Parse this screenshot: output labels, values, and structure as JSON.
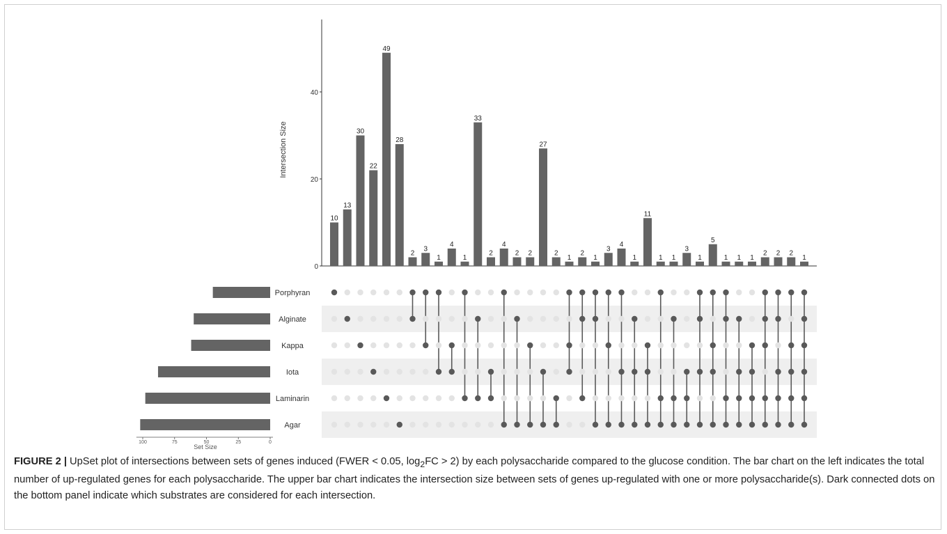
{
  "chart_data": {
    "type": "bar",
    "title": "",
    "ylabel": "Intersection Size",
    "ylim": [
      0,
      55
    ],
    "y_ticks": [
      0,
      20,
      40
    ],
    "set_size_axis": {
      "xlabel": "Set Size",
      "ticks": [
        "100",
        "75",
        "50",
        "25",
        "0"
      ],
      "xlim": [
        0,
        105
      ]
    },
    "sets": [
      "Porphyran",
      "Alginate",
      "Kappa",
      "Iota",
      "Laminarin",
      "Agar"
    ],
    "set_sizes": [
      45,
      60,
      62,
      88,
      98,
      102
    ],
    "intersections": [
      {
        "sets": [
          "Porphyran"
        ],
        "size": 10
      },
      {
        "sets": [
          "Alginate"
        ],
        "size": 13
      },
      {
        "sets": [
          "Kappa"
        ],
        "size": 30
      },
      {
        "sets": [
          "Iota"
        ],
        "size": 22
      },
      {
        "sets": [
          "Laminarin"
        ],
        "size": 49
      },
      {
        "sets": [
          "Agar"
        ],
        "size": 28
      },
      {
        "sets": [
          "Porphyran",
          "Alginate"
        ],
        "size": 2
      },
      {
        "sets": [
          "Porphyran",
          "Kappa"
        ],
        "size": 3
      },
      {
        "sets": [
          "Porphyran",
          "Iota"
        ],
        "size": 1
      },
      {
        "sets": [
          "Kappa",
          "Iota"
        ],
        "size": 4
      },
      {
        "sets": [
          "Porphyran",
          "Laminarin"
        ],
        "size": 1
      },
      {
        "sets": [
          "Alginate",
          "Laminarin"
        ],
        "size": 33
      },
      {
        "sets": [
          "Iota",
          "Laminarin"
        ],
        "size": 2
      },
      {
        "sets": [
          "Porphyran",
          "Agar"
        ],
        "size": 4
      },
      {
        "sets": [
          "Alginate",
          "Agar"
        ],
        "size": 2
      },
      {
        "sets": [
          "Kappa",
          "Agar"
        ],
        "size": 2
      },
      {
        "sets": [
          "Iota",
          "Agar"
        ],
        "size": 27
      },
      {
        "sets": [
          "Laminarin",
          "Agar"
        ],
        "size": 2
      },
      {
        "sets": [
          "Porphyran",
          "Kappa",
          "Iota"
        ],
        "size": 1
      },
      {
        "sets": [
          "Porphyran",
          "Alginate",
          "Laminarin"
        ],
        "size": 2
      },
      {
        "sets": [
          "Porphyran",
          "Alginate",
          "Agar"
        ],
        "size": 1
      },
      {
        "sets": [
          "Porphyran",
          "Kappa",
          "Agar"
        ],
        "size": 3
      },
      {
        "sets": [
          "Porphyran",
          "Iota",
          "Agar"
        ],
        "size": 4
      },
      {
        "sets": [
          "Alginate",
          "Iota",
          "Agar"
        ],
        "size": 1
      },
      {
        "sets": [
          "Kappa",
          "Iota",
          "Agar"
        ],
        "size": 11
      },
      {
        "sets": [
          "Porphyran",
          "Laminarin",
          "Agar"
        ],
        "size": 1
      },
      {
        "sets": [
          "Alginate",
          "Laminarin",
          "Agar"
        ],
        "size": 1
      },
      {
        "sets": [
          "Iota",
          "Laminarin",
          "Agar"
        ],
        "size": 3
      },
      {
        "sets": [
          "Porphyran",
          "Alginate",
          "Iota",
          "Agar"
        ],
        "size": 1
      },
      {
        "sets": [
          "Porphyran",
          "Kappa",
          "Iota",
          "Agar"
        ],
        "size": 5
      },
      {
        "sets": [
          "Porphyran",
          "Alginate",
          "Laminarin",
          "Agar"
        ],
        "size": 1
      },
      {
        "sets": [
          "Alginate",
          "Iota",
          "Laminarin",
          "Agar"
        ],
        "size": 1
      },
      {
        "sets": [
          "Kappa",
          "Iota",
          "Laminarin",
          "Agar"
        ],
        "size": 1
      },
      {
        "sets": [
          "Porphyran",
          "Alginate",
          "Kappa",
          "Laminarin",
          "Agar"
        ],
        "size": 2
      },
      {
        "sets": [
          "Porphyran",
          "Alginate",
          "Iota",
          "Laminarin",
          "Agar"
        ],
        "size": 2
      },
      {
        "sets": [
          "Porphyran",
          "Kappa",
          "Iota",
          "Laminarin",
          "Agar"
        ],
        "size": 2
      },
      {
        "sets": [
          "Porphyran",
          "Alginate",
          "Kappa",
          "Iota",
          "Laminarin",
          "Agar"
        ],
        "size": 1
      }
    ],
    "grid": false,
    "colors": {
      "bar": "#646464",
      "dot_active": "#595959",
      "dot_inactive": "#e3e3e3",
      "stripe": "#efefef"
    }
  },
  "caption": {
    "label": "FIGURE 2 |",
    "text_a": " UpSet plot of intersections between sets of genes induced (FWER < 0.05, log",
    "sub": "2",
    "text_b": "FC > 2) by each polysaccharide compared to the glucose condition. The bar chart on the left indicates the total number of up-regulated genes for each polysaccharide. The upper bar chart indicates the intersection size between sets of genes up-regulated with one or more polysaccharide(s). Dark connected dots on the bottom panel indicate which substrates are considered for each intersection."
  }
}
